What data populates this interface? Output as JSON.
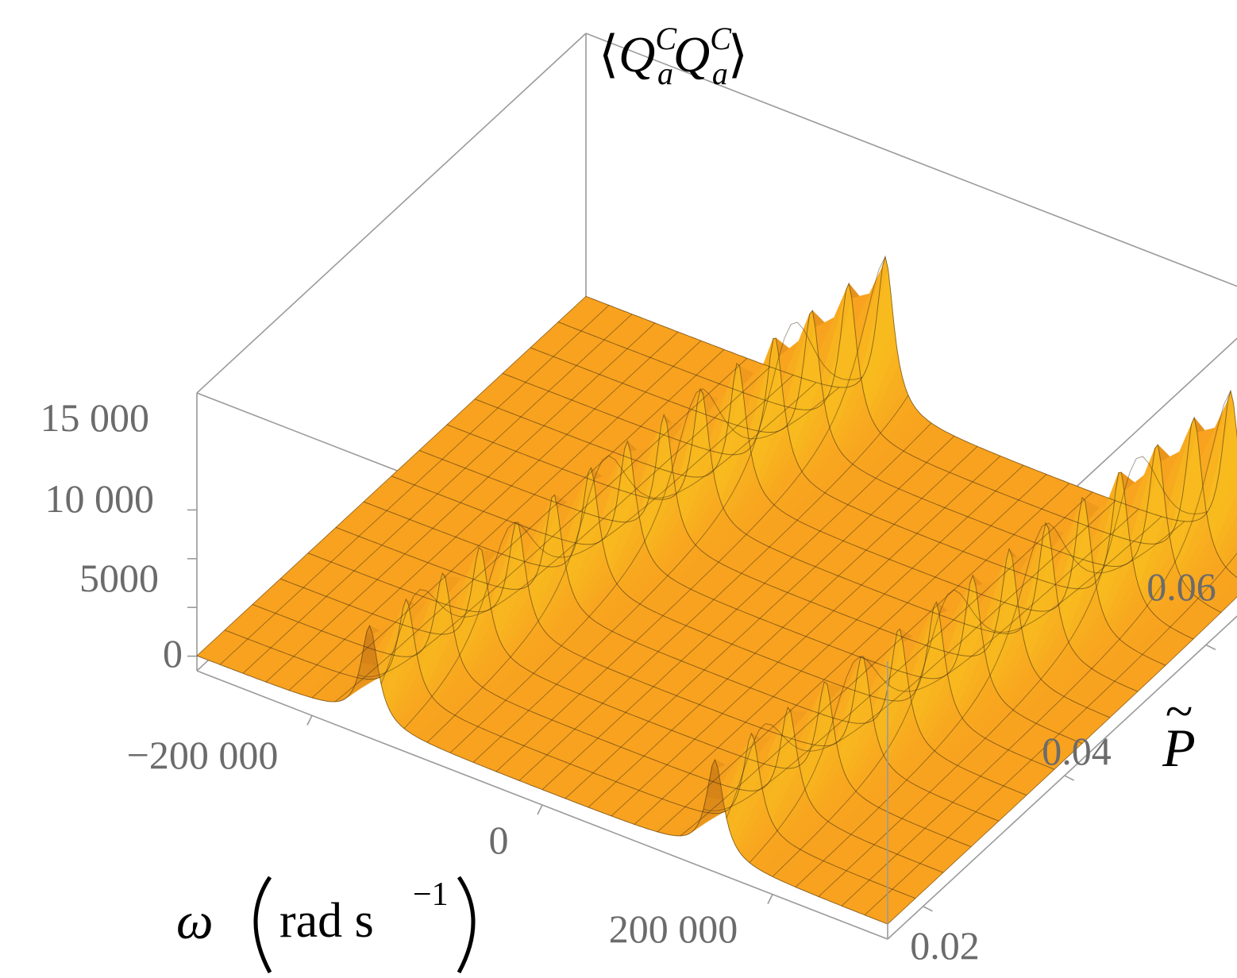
{
  "chart_data": {
    "type": "surface3d",
    "title_parts": {
      "open": "⟨",
      "q1": "Q",
      "q1_sup": "C",
      "q1_sub": "a",
      "q2": "Q",
      "q2_sup": "C",
      "q2_sub": "a",
      "close": "⟩"
    },
    "x_axis": {
      "label_symbol": "ω",
      "label_units": "rad s",
      "label_units_exponent": "−1",
      "range": [
        -300000,
        300000
      ],
      "ticks": [
        -200000,
        0,
        200000
      ],
      "tick_labels": [
        "−200 000",
        "0",
        "200 000"
      ]
    },
    "y_axis": {
      "label": "P",
      "label_accent": "~",
      "range": [
        0.015,
        0.07
      ],
      "ticks": [
        0.02,
        0.04,
        0.06
      ],
      "tick_labels": [
        "0.02",
        "0.04",
        "0.06"
      ]
    },
    "z_axis": {
      "range": [
        -1500,
        27000
      ],
      "ticks": [
        0,
        5000,
        10000,
        15000
      ],
      "tick_labels": [
        "0",
        "5000",
        "10 000",
        "15 000"
      ]
    },
    "peaks": [
      {
        "omega_at_P_min": -150000,
        "omega_at_P_max": -40000,
        "height_at_P_min": 10000,
        "height_at_P_max": 16000
      },
      {
        "omega_at_P_min": 150000,
        "omega_at_P_max": 260000,
        "height_at_P_min": 10000,
        "height_at_P_max": 16000
      }
    ],
    "colors": {
      "surface": "#f8a21f",
      "highlight": "#ffd21e",
      "shadow": "#b0620e",
      "mesh": "#3a2a10",
      "box": "#9a9a9a"
    },
    "box": true,
    "mesh": true
  }
}
